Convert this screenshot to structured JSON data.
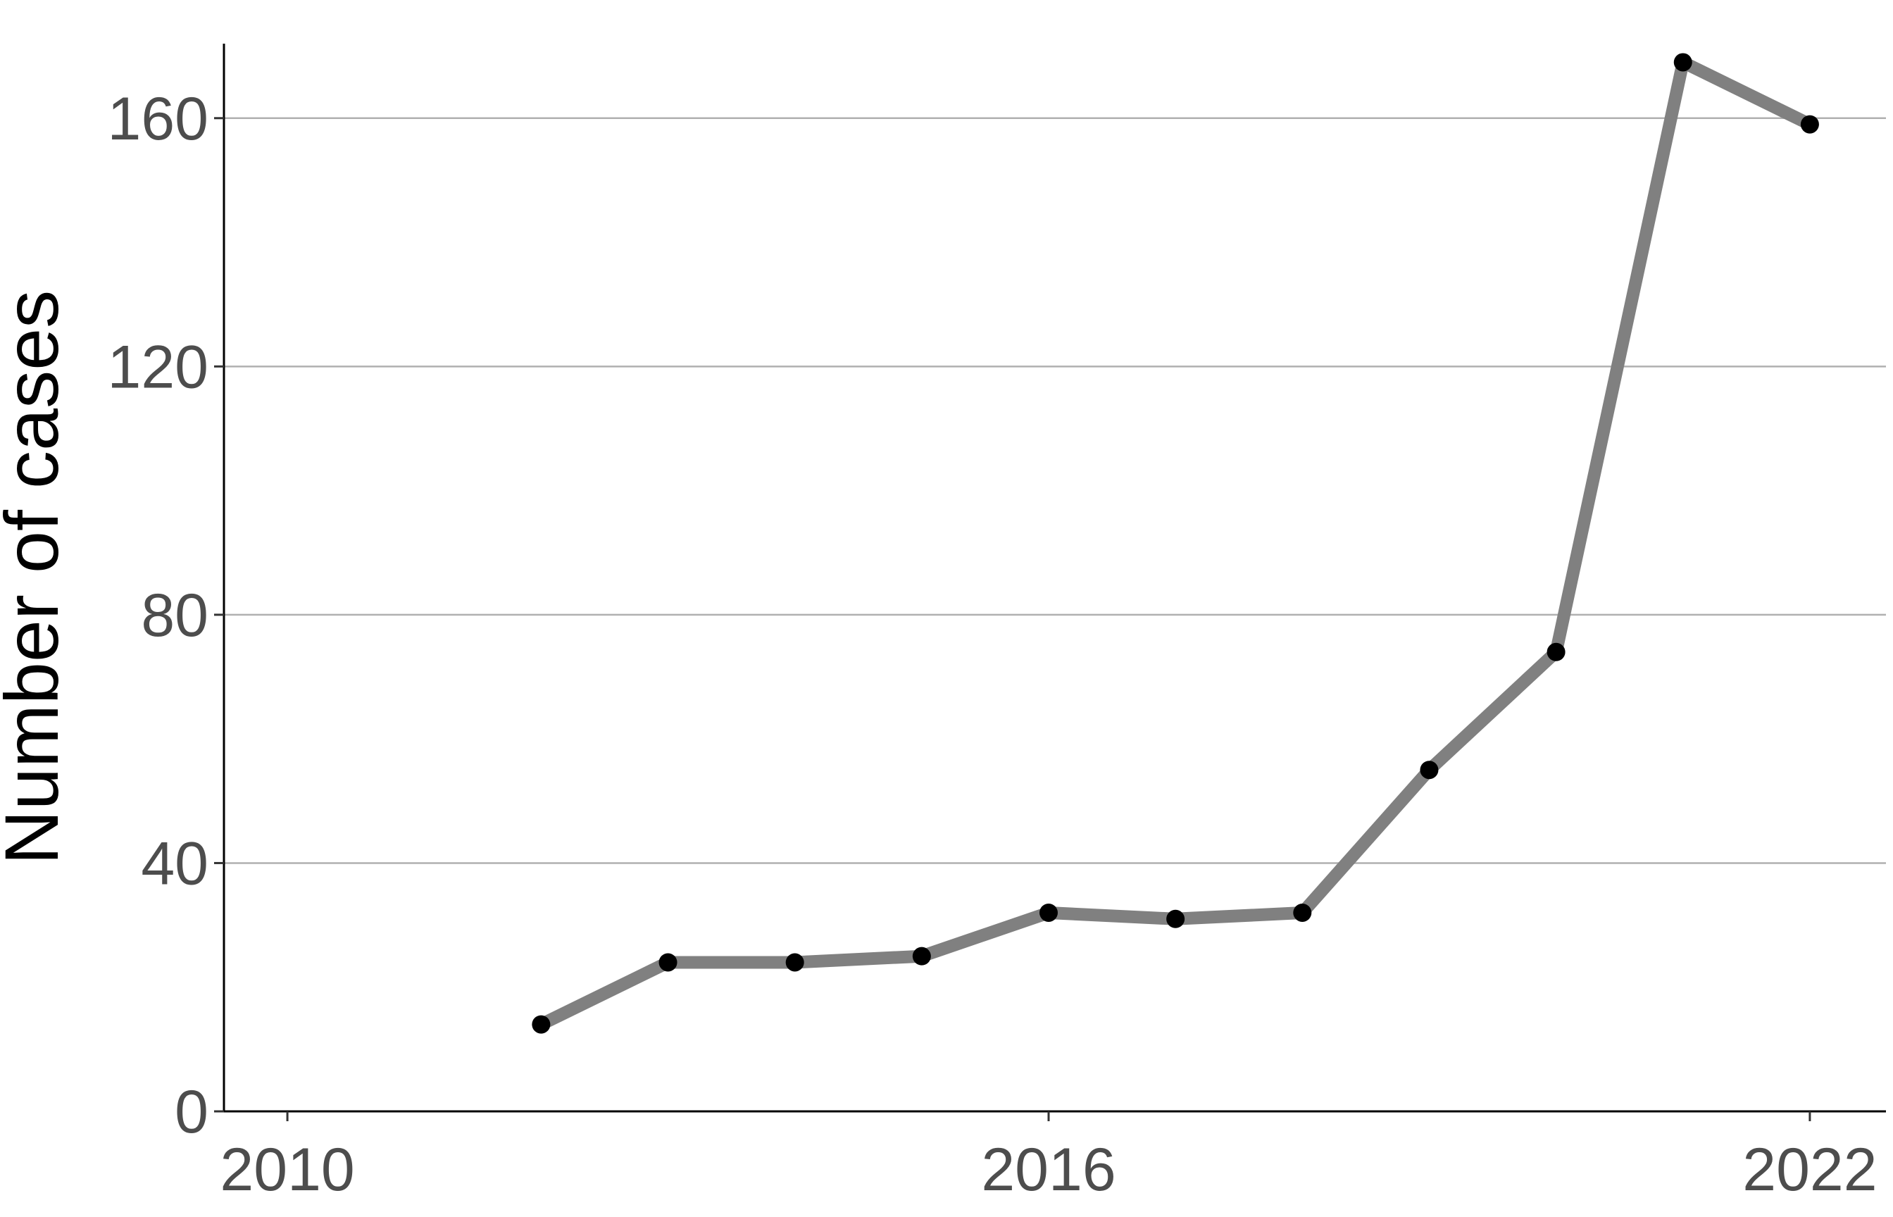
{
  "chart_data": {
    "type": "line",
    "title": "",
    "xlabel": "",
    "ylabel": "Number of cases",
    "x": [
      2012,
      2013,
      2014,
      2015,
      2016,
      2017,
      2018,
      2019,
      2020,
      2021,
      2022
    ],
    "series": [
      {
        "values": [
          14,
          24,
          24,
          25,
          32,
          31,
          32,
          55,
          74,
          169,
          159
        ]
      }
    ],
    "xlim": [
      2009.5,
      2022.6
    ],
    "ylim": [
      0,
      172
    ],
    "x_ticks": [
      2010,
      2016,
      2022
    ],
    "y_ticks": [
      0,
      40,
      80,
      120,
      160
    ],
    "grid": "horizontal major",
    "legend": "none",
    "colors": {
      "line": "#808080",
      "points": "#000000",
      "grid": "#b0b0b0",
      "tick_text": "#4d4d4d"
    }
  }
}
